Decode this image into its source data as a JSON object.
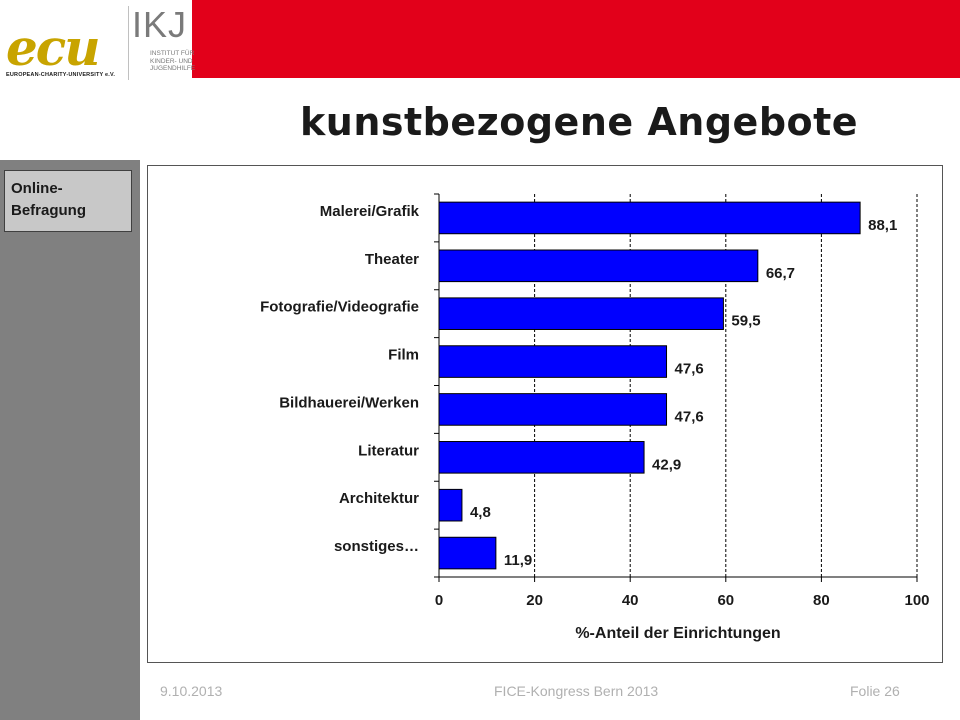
{
  "slide": {
    "title": "kunstbezogene Angebote",
    "section_label_line1": "Online-",
    "section_label_line2": "Befragung",
    "accent_color": "#e2001a",
    "band_color": "#808080"
  },
  "logos": {
    "ecu_text": "ecu",
    "ecu_subtitle": "EUROPEAN-CHARITY-UNIVERSITY e.V.",
    "ikj_text": "IKJ",
    "ikj_subtitle_lines": [
      "INSTITUT FÜR",
      "KINDER- UND",
      "JUGENDHILFE"
    ]
  },
  "footer": {
    "date": "9.10.2013",
    "event": "FICE-Kongress Bern 2013",
    "slide_number": "Folie 26"
  },
  "chart_data": {
    "type": "bar",
    "orientation": "horizontal",
    "categories": [
      "Malerei/Grafik",
      "Theater",
      "Fotografie/Videografie",
      "Film",
      "Bildhauerei/Werken",
      "Literatur",
      "Architektur",
      "sonstiges…"
    ],
    "values": [
      88.1,
      66.7,
      59.5,
      47.6,
      47.6,
      42.9,
      4.8,
      11.9
    ],
    "value_labels": [
      "88,1",
      "66,7",
      "59,5",
      "47,6",
      "47,6",
      "42,9",
      "4,8",
      "11,9"
    ],
    "xlabel": "%-Anteil der Einrichtungen",
    "xlim": [
      0,
      100
    ],
    "xticks": [
      0,
      20,
      40,
      60,
      80,
      100
    ],
    "grid": "vertical dashed",
    "bar_color": "#0000ff",
    "bar_edge_color": "#000000"
  }
}
